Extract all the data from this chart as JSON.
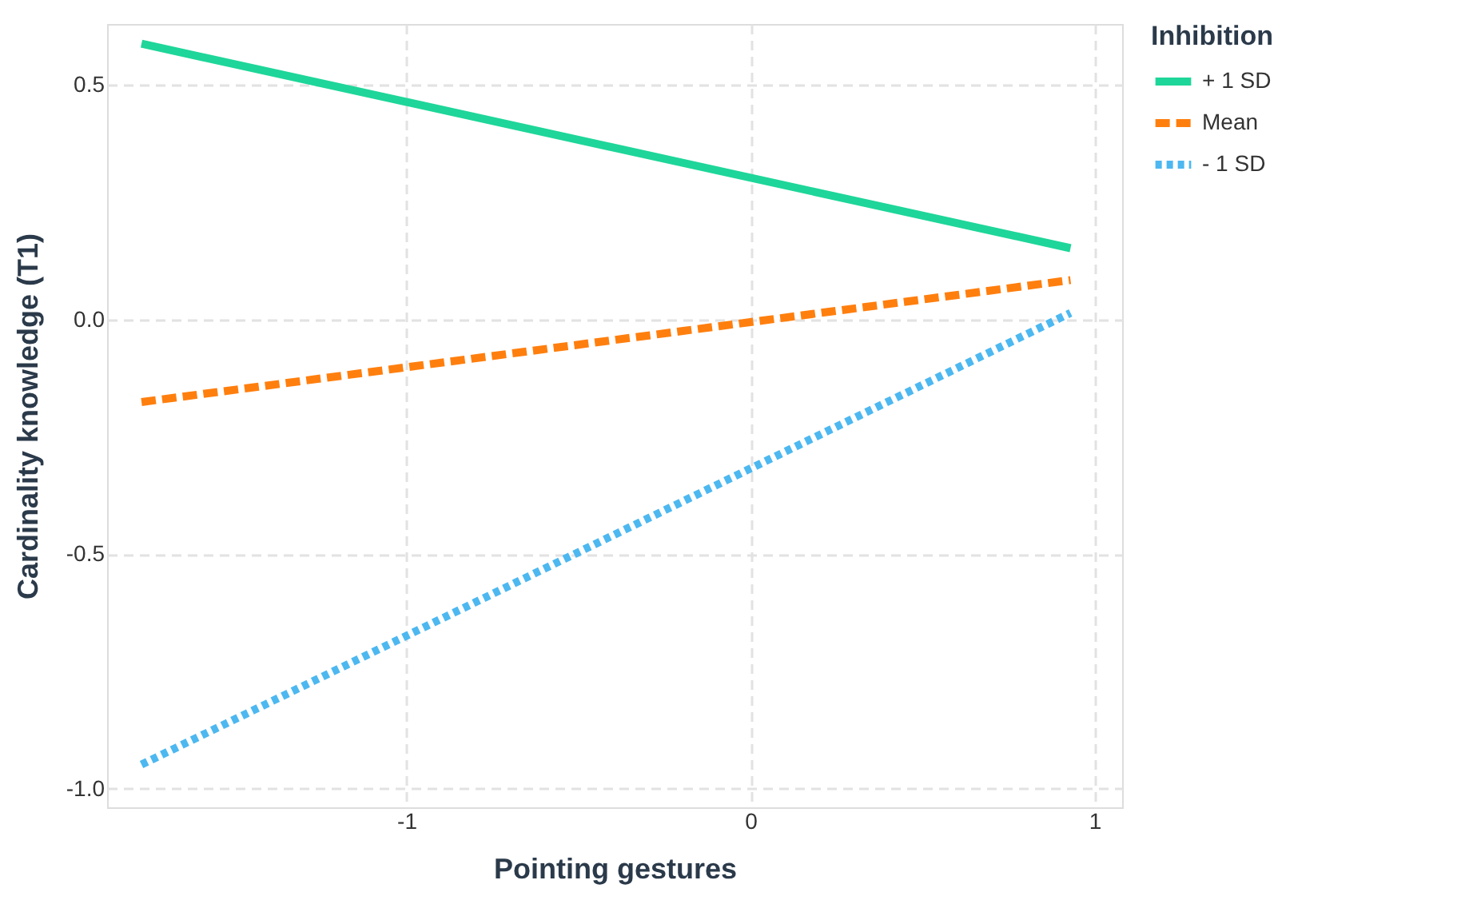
{
  "chart_data": {
    "type": "line",
    "xlabel": "Pointing gestures",
    "ylabel": "Cardinality knowledge (T1)",
    "legend_title": "Inhibition",
    "legend": "right",
    "grid": true,
    "marker": "none",
    "x": [
      -1.77,
      0.93
    ],
    "xlim": [
      -1.87,
      1.08
    ],
    "ylim": [
      -1.04,
      0.63
    ],
    "xticks": [
      -1,
      0,
      1
    ],
    "yticks": [
      {
        "value": -1,
        "label": "-1.0"
      },
      -0.5,
      {
        "value": 0,
        "label": "0.0"
      },
      0.5
    ],
    "series": [
      {
        "name": "+ 1 SD",
        "color": "#1ed699",
        "line_style": "solid",
        "values": [
          0.588,
          0.152
        ]
      },
      {
        "name": "Mean",
        "color": "#ff7f0e",
        "line_style": "dashed",
        "values": [
          -0.176,
          0.084
        ]
      },
      {
        "name": "- 1 SD",
        "color": "#4db8f0",
        "line_style": "dotted",
        "values": [
          -0.949,
          0.014
        ]
      }
    ]
  }
}
